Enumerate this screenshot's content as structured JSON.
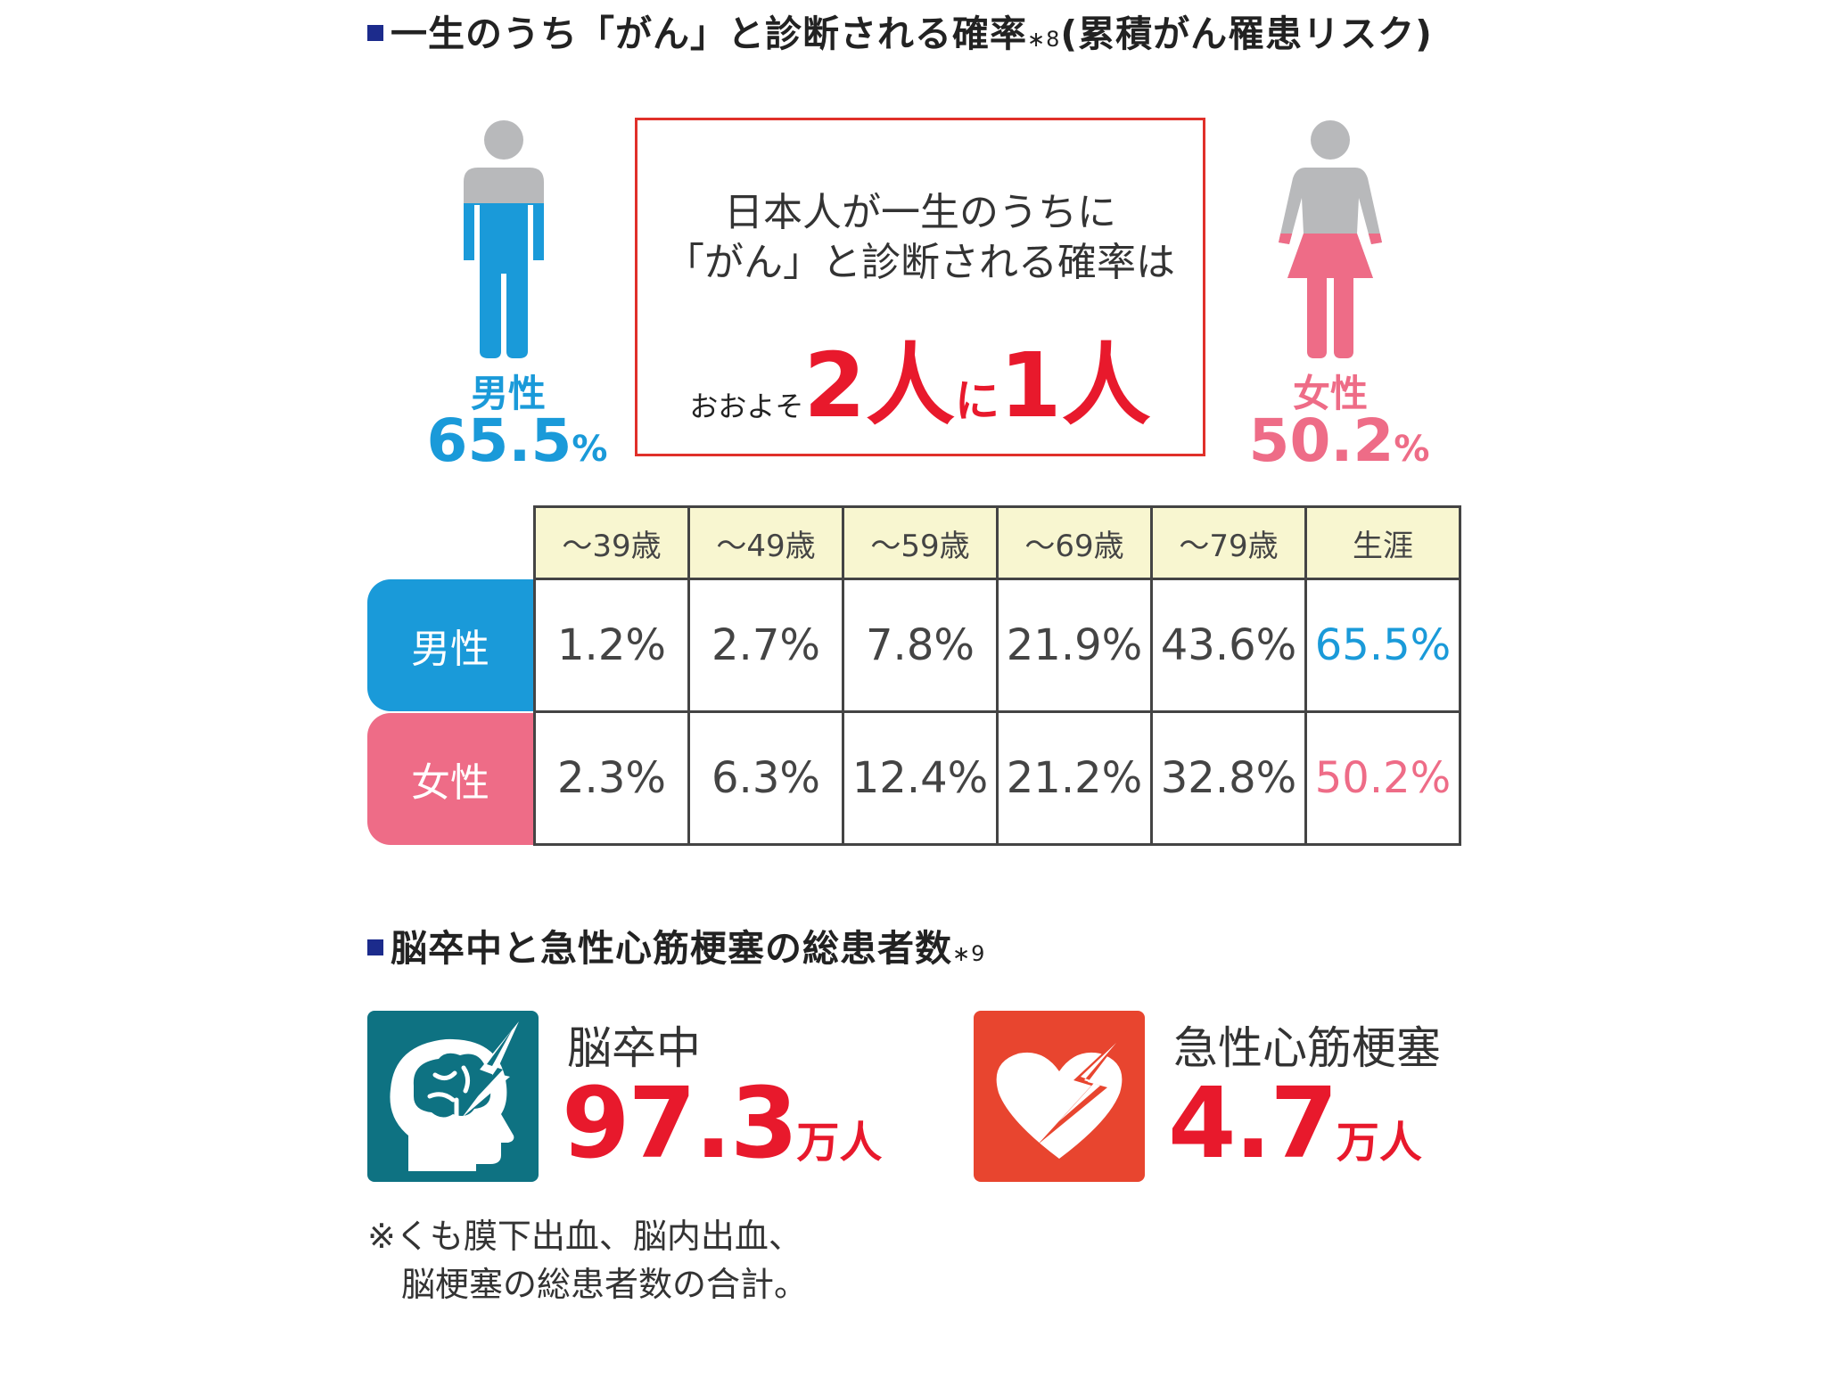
{
  "section1": {
    "title": "一生のうち「がん」と診断される確率",
    "note": "∗8",
    "subtitle": "(累積がん罹患リスク)"
  },
  "male": {
    "label": "男性",
    "value": "65.5",
    "unit": "%",
    "color": "#1a9ad9"
  },
  "female": {
    "label": "女性",
    "value": "50.2",
    "unit": "%",
    "color": "#ee6c87"
  },
  "callout": {
    "line1": "日本人が一生のうちに",
    "line2": "「がん」と診断される確率は",
    "prefix": "おおよそ",
    "num1": "2人",
    "mid": "に",
    "num2": "1人"
  },
  "table": {
    "headers": [
      "～39歳",
      "～49歳",
      "～59歳",
      "～69歳",
      "～79歳",
      "生涯"
    ],
    "rows": [
      {
        "label": "男性",
        "cells": [
          "1.2%",
          "2.7%",
          "7.8%",
          "21.9%",
          "43.6%",
          "65.5%"
        ]
      },
      {
        "label": "女性",
        "cells": [
          "2.3%",
          "6.3%",
          "12.4%",
          "21.2%",
          "32.8%",
          "50.2%"
        ]
      }
    ]
  },
  "section2": {
    "title": "脳卒中と急性心筋梗塞の総患者数",
    "note": "∗9"
  },
  "stroke": {
    "label": "脳卒中",
    "value": "97.3",
    "unit": "万人",
    "icon": "brain-lightning-icon",
    "color": "#0e7282"
  },
  "heart": {
    "label": "急性心筋梗塞",
    "value": "4.7",
    "unit": "万人",
    "icon": "heart-lightning-icon",
    "color": "#e8452f"
  },
  "footnote": {
    "line1": "※くも膜下出血、脳内出血、",
    "line2": "　脳梗塞の総患者数の合計。"
  }
}
